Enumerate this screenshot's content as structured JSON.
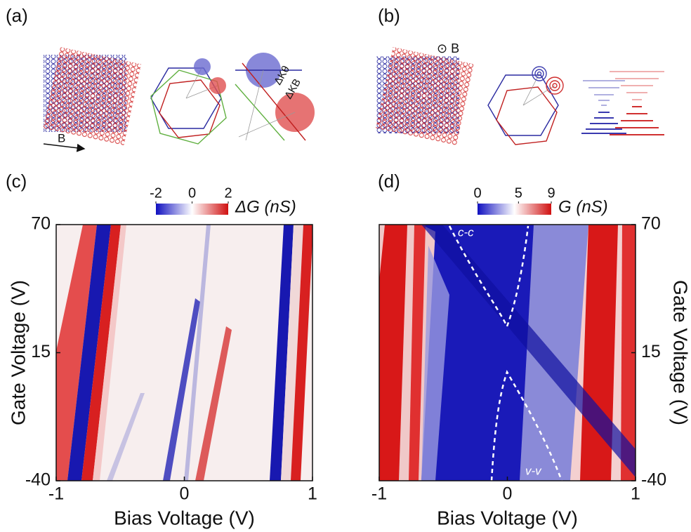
{
  "panels": {
    "a": {
      "label": "(a)",
      "annotations": {
        "field": "B",
        "delta_k_theta": "ΔKθ",
        "delta_k_b": "ΔKB"
      }
    },
    "b": {
      "label": "(b)",
      "annotations": {
        "field": "⊙ B"
      }
    },
    "c": {
      "label": "(c)",
      "xlabel": "Bias Voltage (V)",
      "ylabel": "Gate Voltage (V)",
      "xlim": [
        -1,
        1
      ],
      "xticks": [
        -1,
        0,
        1
      ],
      "ylim": [
        -40,
        70
      ],
      "yticks": [
        -40,
        15,
        70
      ],
      "colorbar": {
        "label": "ΔG (nS)",
        "lim": [
          -2,
          2
        ],
        "ticks": [
          -2,
          0,
          2
        ]
      }
    },
    "d": {
      "label": "(d)",
      "xlabel": "Bias Voltage (V)",
      "ylabel": "Gate Voltage (V)",
      "xlim": [
        -1,
        1
      ],
      "xticks": [
        -1,
        0,
        1
      ],
      "ylim": [
        -40,
        70
      ],
      "yticks": [
        -40,
        15,
        70
      ],
      "colorbar": {
        "label": "G (nS)",
        "lim": [
          0,
          9
        ],
        "ticks": [
          0,
          5,
          9
        ]
      },
      "annotations": {
        "cc": "c-c",
        "vv": "v-v"
      }
    }
  }
}
